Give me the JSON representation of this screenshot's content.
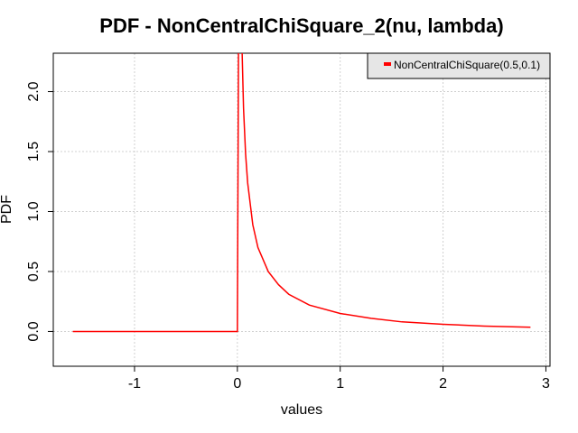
{
  "chart_data": {
    "type": "line",
    "title": "PDF - NonCentralChiSquare_2(nu, lambda)",
    "x_label": "values",
    "y_label": "PDF",
    "x": [
      -1.6,
      -1.2,
      -0.8,
      -0.4,
      0,
      0.02,
      0.04,
      0.06,
      0.08,
      0.1,
      0.15,
      0.2,
      0.3,
      0.4,
      0.5,
      0.7,
      1,
      1.3,
      1.6,
      2,
      2.4,
      2.85
    ],
    "series": [
      {
        "name": "NonCentralChiSquare(0.5,0.1)",
        "color": "#ff0000",
        "values": [
          0,
          0,
          0,
          0,
          0,
          4.32,
          2.54,
          1.86,
          1.48,
          1.24,
          0.89,
          0.7,
          0.5,
          0.39,
          0.31,
          0.22,
          0.15,
          0.11,
          0.08,
          0.06,
          0.045,
          0.035
        ]
      }
    ],
    "xlim": [
      -1.79,
      3.04
    ],
    "ylim": [
      -0.29,
      2.32
    ],
    "xticks": [
      -1,
      0,
      1,
      2,
      3
    ],
    "yticks": [
      {
        "value": 0,
        "label": "0.0"
      },
      0.5,
      {
        "value": 1,
        "label": "1.0"
      },
      1.5,
      {
        "value": 2,
        "label": "2.0"
      }
    ],
    "grid": true,
    "legend": "top-right"
  }
}
